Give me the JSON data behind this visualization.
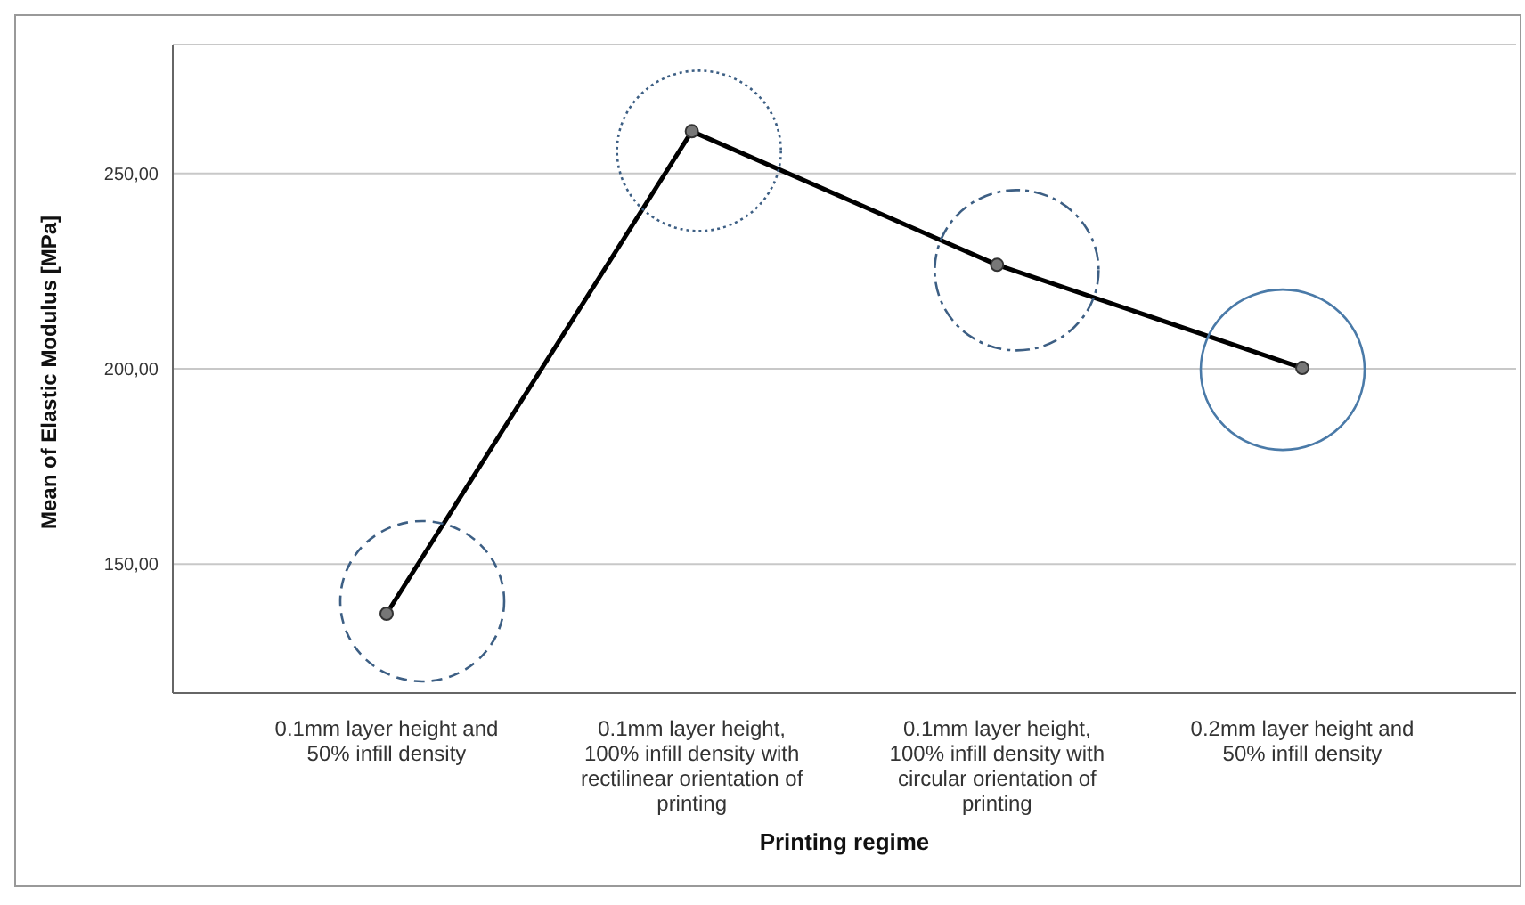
{
  "chart_data": {
    "type": "line",
    "xlabel": "Printing regime",
    "ylabel": "Mean of Elastic Modulus [MPa]",
    "categories": [
      "0.1mm layer height and 50% infill density",
      "0.1mm layer height, 100% infill density with rectilinear orientation of printing",
      "0.1mm layer height, 100% infill density with circular orientation of printing",
      "0.2mm layer height and 50% infill density"
    ],
    "series": [
      {
        "color": "#000000",
        "values": [
          137.3,
          260.8,
          226.6,
          200.2
        ]
      }
    ],
    "ylim": [
      117,
      283
    ],
    "yticks": [
      {
        "value": 150,
        "label": "150,00"
      },
      {
        "value": 200,
        "label": "200,00"
      },
      {
        "value": 250,
        "label": "250,00"
      }
    ],
    "grid": "y",
    "legend": false,
    "marker": "circle",
    "line_style": "solid"
  }
}
